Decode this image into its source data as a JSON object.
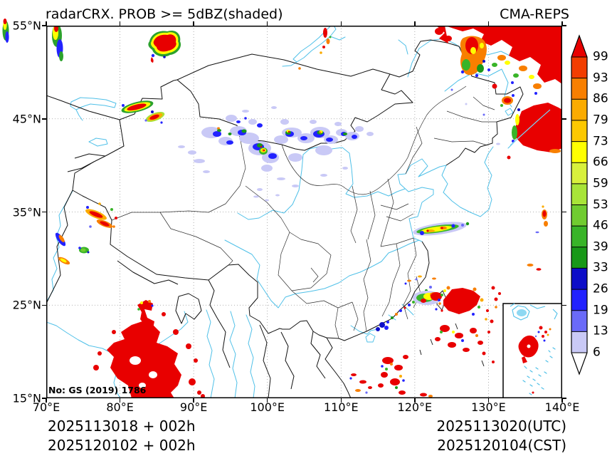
{
  "header": {
    "title": "radarCRX. PROB >= 5dBZ(shaded)",
    "model": "CMA-REPS"
  },
  "map": {
    "x_axis_ticks": [
      "70°E",
      "80°E",
      "90°E",
      "100°E",
      "110°E",
      "120°E",
      "130°E",
      "140°E"
    ],
    "y_axis_ticks": [
      "55°N",
      "45°N",
      "35°N",
      "25°N",
      "15°N"
    ],
    "note": "No: GS (2019) 1786"
  },
  "colorbar": {
    "levels_top_to_bottom": [
      "99",
      "93",
      "86",
      "79",
      "73",
      "66",
      "59",
      "53",
      "46",
      "39",
      "33",
      "26",
      "19",
      "13",
      "6"
    ],
    "colors_top_to_bottom": [
      "#f23d00",
      "#f87f00",
      "#fbab00",
      "#fcc800",
      "#ffff00",
      "#d8f03c",
      "#a8e438",
      "#70cc30",
      "#38b428",
      "#189818",
      "#0d0dc8",
      "#2222ff",
      "#6a6af8",
      "#c9c9f6"
    ],
    "extend_above_color": "#e80000",
    "extend_below_color": "#ffffff"
  },
  "footer": {
    "init_line_utc": "2025113018 + 002h",
    "init_line_cst": "2025120102 + 002h",
    "valid_line_utc": "2025113020(UTC)",
    "valid_line_cst": "2025120104(CST)"
  },
  "style_colors": {
    "river": "#4fc0e8",
    "national_border": "#111111",
    "province_border": "#2e2e2e",
    "grid": "#999999",
    "radar_red": "#e80000"
  }
}
